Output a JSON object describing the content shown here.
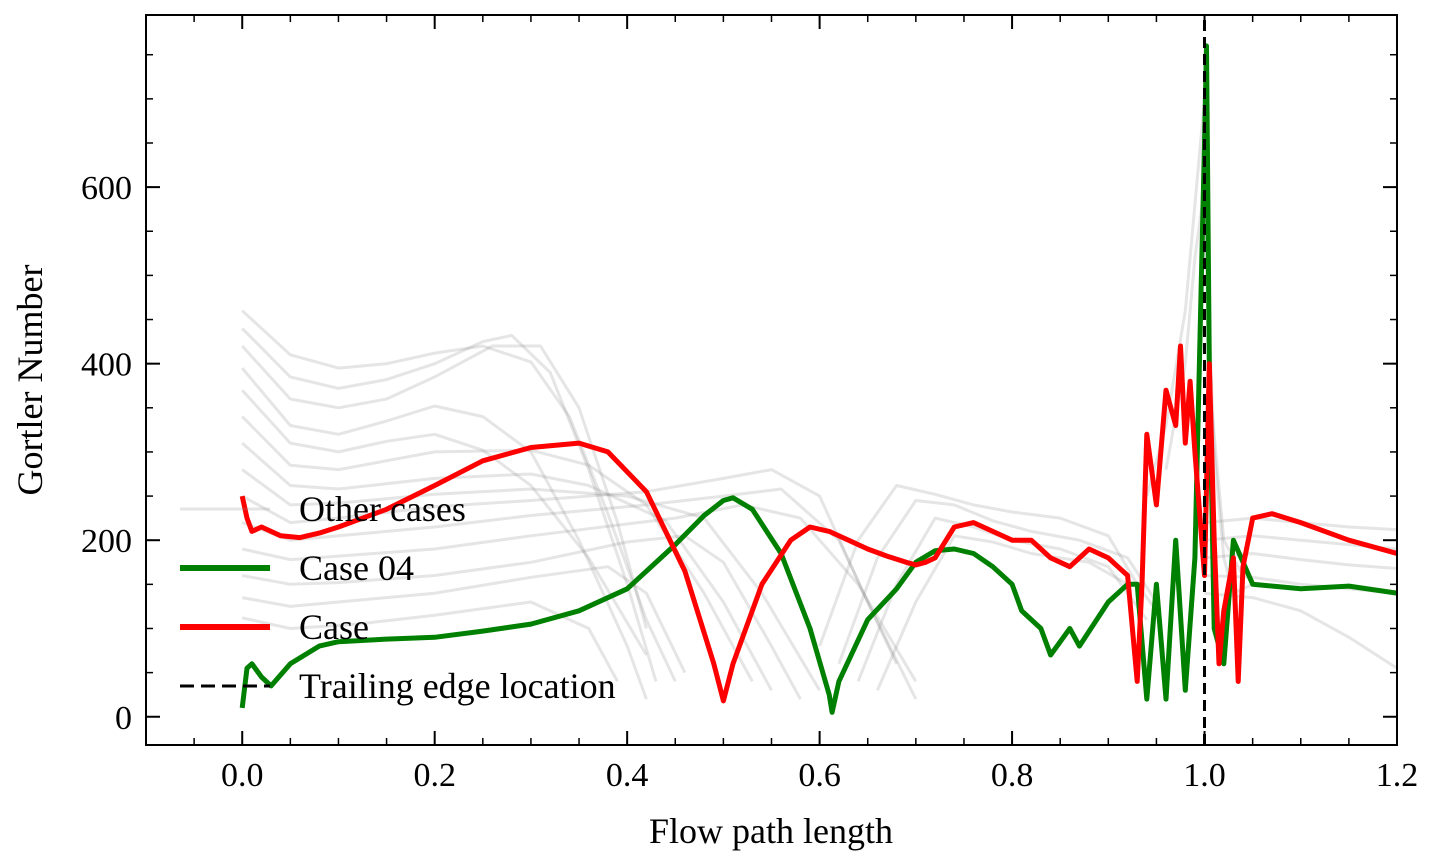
{
  "chart_data": {
    "type": "line",
    "title": "",
    "xlabel": "Flow path length",
    "ylabel": "Gortler Number",
    "xlim": [
      -0.1,
      1.2
    ],
    "ylim": [
      -32,
      795
    ],
    "xticks": [
      0.0,
      0.2,
      0.4,
      0.6,
      0.8,
      1.0,
      1.2
    ],
    "xtick_labels": [
      "0.0",
      "0.2",
      "0.4",
      "0.6",
      "0.8",
      "1.0",
      "1.2"
    ],
    "yticks": [
      0,
      200,
      400,
      600
    ],
    "ytick_labels": [
      "0",
      "200",
      "400",
      "600"
    ],
    "grid": false,
    "legend_position": "lower-left",
    "series": [
      {
        "name": "Other cases",
        "color": "#888888",
        "style": "solid-light",
        "curves": [
          [
            [
              0,
              460
            ],
            [
              0.05,
              410
            ],
            [
              0.1,
              395
            ],
            [
              0.15,
              400
            ],
            [
              0.2,
              412
            ],
            [
              0.25,
              420
            ],
            [
              0.3,
              402
            ],
            [
              0.34,
              340
            ],
            [
              0.38,
              230
            ],
            [
              0.42,
              110
            ],
            [
              0.45,
              40
            ]
          ],
          [
            [
              0,
              440
            ],
            [
              0.05,
              385
            ],
            [
              0.1,
              372
            ],
            [
              0.15,
              382
            ],
            [
              0.2,
              400
            ],
            [
              0.25,
              425
            ],
            [
              0.28,
              432
            ],
            [
              0.32,
              390
            ],
            [
              0.36,
              280
            ],
            [
              0.4,
              150
            ],
            [
              0.43,
              40
            ]
          ],
          [
            [
              0,
              420
            ],
            [
              0.05,
              360
            ],
            [
              0.1,
              350
            ],
            [
              0.15,
              360
            ],
            [
              0.2,
              385
            ],
            [
              0.26,
              420
            ],
            [
              0.31,
              420
            ],
            [
              0.35,
              350
            ],
            [
              0.39,
              220
            ],
            [
              0.42,
              100
            ]
          ],
          [
            [
              0,
              395
            ],
            [
              0.05,
              330
            ],
            [
              0.1,
              320
            ],
            [
              0.15,
              335
            ],
            [
              0.2,
              352
            ],
            [
              0.25,
              340
            ],
            [
              0.3,
              300
            ],
            [
              0.35,
              200
            ],
            [
              0.4,
              80
            ],
            [
              0.42,
              20
            ]
          ],
          [
            [
              0,
              370
            ],
            [
              0.05,
              310
            ],
            [
              0.1,
              300
            ],
            [
              0.15,
              312
            ],
            [
              0.2,
              320
            ],
            [
              0.25,
              302
            ],
            [
              0.3,
              262
            ],
            [
              0.36,
              180
            ],
            [
              0.42,
              70
            ]
          ],
          [
            [
              0,
              340
            ],
            [
              0.05,
              285
            ],
            [
              0.1,
              280
            ],
            [
              0.2,
              300
            ],
            [
              0.3,
              302
            ],
            [
              0.36,
              285
            ],
            [
              0.42,
              240
            ],
            [
              0.48,
              140
            ],
            [
              0.53,
              40
            ]
          ],
          [
            [
              0,
              310
            ],
            [
              0.05,
              262
            ],
            [
              0.1,
              258
            ],
            [
              0.2,
              270
            ],
            [
              0.3,
              275
            ],
            [
              0.36,
              262
            ],
            [
              0.44,
              222
            ],
            [
              0.5,
              130
            ],
            [
              0.55,
              30
            ]
          ],
          [
            [
              0,
              280
            ],
            [
              0.05,
              240
            ],
            [
              0.1,
              242
            ],
            [
              0.2,
              252
            ],
            [
              0.3,
              258
            ],
            [
              0.4,
              250
            ],
            [
              0.48,
              225
            ],
            [
              0.54,
              140
            ],
            [
              0.6,
              30
            ]
          ],
          [
            [
              0,
              250
            ],
            [
              0.05,
              220
            ],
            [
              0.1,
              225
            ],
            [
              0.2,
              238
            ],
            [
              0.3,
              245
            ],
            [
              0.42,
              255
            ],
            [
              0.5,
              270
            ],
            [
              0.55,
              280
            ],
            [
              0.6,
              250
            ],
            [
              0.65,
              130
            ],
            [
              0.7,
              20
            ]
          ],
          [
            [
              0,
              220
            ],
            [
              0.05,
              200
            ],
            [
              0.1,
              205
            ],
            [
              0.2,
              215
            ],
            [
              0.3,
              228
            ],
            [
              0.42,
              240
            ],
            [
              0.5,
              250
            ],
            [
              0.56,
              258
            ],
            [
              0.62,
              200
            ],
            [
              0.68,
              60
            ]
          ],
          [
            [
              0,
              190
            ],
            [
              0.05,
              178
            ],
            [
              0.1,
              182
            ],
            [
              0.2,
              190
            ],
            [
              0.3,
              205
            ],
            [
              0.45,
              225
            ],
            [
              0.52,
              240
            ],
            [
              0.58,
              225
            ],
            [
              0.64,
              150
            ],
            [
              0.7,
              40
            ]
          ],
          [
            [
              0,
              160
            ],
            [
              0.05,
              150
            ],
            [
              0.1,
              152
            ],
            [
              0.2,
              160
            ],
            [
              0.3,
              175
            ],
            [
              0.4,
              198
            ],
            [
              0.46,
              205
            ],
            [
              0.5,
              175
            ],
            [
              0.55,
              80
            ],
            [
              0.58,
              20
            ]
          ],
          [
            [
              0,
              135
            ],
            [
              0.05,
              125
            ],
            [
              0.1,
              130
            ],
            [
              0.2,
              140
            ],
            [
              0.3,
              158
            ],
            [
              0.38,
              170
            ],
            [
              0.42,
              140
            ],
            [
              0.46,
              50
            ]
          ],
          [
            [
              0,
              112
            ],
            [
              0.05,
              100
            ],
            [
              0.12,
              105
            ],
            [
              0.2,
              115
            ],
            [
              0.3,
              130
            ],
            [
              0.36,
              100
            ],
            [
              0.39,
              40
            ]
          ],
          [
            [
              0.6,
              80
            ],
            [
              0.64,
              200
            ],
            [
              0.68,
              262
            ],
            [
              0.72,
              252
            ],
            [
              0.76,
              240
            ],
            [
              0.8,
              232
            ],
            [
              0.85,
              225
            ],
            [
              0.9,
              205
            ],
            [
              0.93,
              150
            ],
            [
              0.95,
              120
            ]
          ],
          [
            [
              0.62,
              60
            ],
            [
              0.66,
              180
            ],
            [
              0.7,
              245
            ],
            [
              0.74,
              240
            ],
            [
              0.78,
              222
            ],
            [
              0.82,
              210
            ],
            [
              0.87,
              200
            ],
            [
              0.92,
              180
            ],
            [
              0.95,
              130
            ]
          ],
          [
            [
              0.64,
              40
            ],
            [
              0.68,
              150
            ],
            [
              0.72,
              225
            ],
            [
              0.76,
              215
            ],
            [
              0.8,
              200
            ],
            [
              0.85,
              190
            ],
            [
              0.9,
              170
            ],
            [
              0.94,
              110
            ]
          ],
          [
            [
              0.66,
              30
            ],
            [
              0.7,
              130
            ],
            [
              0.74,
              205
            ],
            [
              0.78,
              198
            ],
            [
              0.82,
              185
            ],
            [
              0.88,
              175
            ],
            [
              0.92,
              150
            ]
          ],
          [
            [
              0.94,
              250
            ],
            [
              0.96,
              330
            ],
            [
              0.98,
              460
            ],
            [
              0.99,
              580
            ],
            [
              1.0,
              700
            ],
            [
              1.003,
              500
            ],
            [
              1.01,
              300
            ],
            [
              1.02,
              180
            ],
            [
              1.03,
              140
            ],
            [
              1.05,
              150
            ]
          ],
          [
            [
              0.96,
              280
            ],
            [
              0.98,
              400
            ],
            [
              0.99,
              520
            ],
            [
              1.0,
              600
            ],
            [
              1.005,
              380
            ],
            [
              1.02,
              200
            ],
            [
              1.04,
              160
            ]
          ],
          [
            [
              1.0,
              220
            ],
            [
              1.05,
              225
            ],
            [
              1.1,
              220
            ],
            [
              1.15,
              215
            ],
            [
              1.2,
              212
            ]
          ],
          [
            [
              1.0,
              200
            ],
            [
              1.05,
              205
            ],
            [
              1.1,
              200
            ],
            [
              1.15,
              195
            ],
            [
              1.2,
              190
            ]
          ],
          [
            [
              1.0,
              180
            ],
            [
              1.05,
              185
            ],
            [
              1.1,
              178
            ],
            [
              1.15,
              172
            ],
            [
              1.2,
              168
            ]
          ],
          [
            [
              1.0,
              160
            ],
            [
              1.05,
              158
            ],
            [
              1.1,
              150
            ],
            [
              1.15,
              145
            ],
            [
              1.2,
              140
            ]
          ],
          [
            [
              1.0,
              140
            ],
            [
              1.05,
              135
            ],
            [
              1.1,
              120
            ],
            [
              1.15,
              90
            ],
            [
              1.2,
              55
            ]
          ]
        ]
      },
      {
        "name": "Case 04",
        "color": "#008000",
        "style": "solid",
        "x": [
          0,
          0.005,
          0.01,
          0.02,
          0.03,
          0.05,
          0.08,
          0.1,
          0.15,
          0.2,
          0.25,
          0.3,
          0.35,
          0.4,
          0.45,
          0.48,
          0.5,
          0.51,
          0.53,
          0.56,
          0.59,
          0.61,
          0.613,
          0.62,
          0.65,
          0.68,
          0.7,
          0.72,
          0.74,
          0.76,
          0.78,
          0.8,
          0.81,
          0.83,
          0.84,
          0.86,
          0.87,
          0.9,
          0.92,
          0.93,
          0.94,
          0.95,
          0.96,
          0.97,
          0.98,
          0.99,
          1.0,
          1.002,
          1.005,
          1.01,
          1.02,
          1.03,
          1.05,
          1.1,
          1.15,
          1.2
        ],
        "y": [
          10,
          55,
          60,
          45,
          35,
          60,
          80,
          85,
          88,
          90,
          97,
          105,
          120,
          145,
          195,
          228,
          245,
          248,
          235,
          185,
          100,
          25,
          5,
          40,
          110,
          145,
          175,
          188,
          190,
          185,
          170,
          150,
          120,
          100,
          70,
          100,
          80,
          130,
          150,
          150,
          20,
          150,
          20,
          200,
          30,
          180,
          650,
          760,
          400,
          100,
          60,
          200,
          150,
          145,
          148,
          140
        ]
      },
      {
        "name": "Case",
        "color": "#ff0000",
        "style": "solid",
        "x": [
          0,
          0.005,
          0.01,
          0.02,
          0.04,
          0.06,
          0.08,
          0.1,
          0.15,
          0.2,
          0.25,
          0.3,
          0.35,
          0.38,
          0.42,
          0.46,
          0.49,
          0.5,
          0.51,
          0.54,
          0.57,
          0.59,
          0.61,
          0.63,
          0.65,
          0.67,
          0.69,
          0.7,
          0.71,
          0.72,
          0.74,
          0.76,
          0.78,
          0.8,
          0.82,
          0.84,
          0.86,
          0.88,
          0.9,
          0.91,
          0.92,
          0.93,
          0.935,
          0.94,
          0.95,
          0.96,
          0.97,
          0.975,
          0.98,
          0.985,
          0.99,
          1.0,
          1.005,
          1.01,
          1.015,
          1.02,
          1.03,
          1.035,
          1.04,
          1.05,
          1.07,
          1.1,
          1.15,
          1.2
        ],
        "y": [
          250,
          225,
          210,
          215,
          205,
          203,
          208,
          215,
          235,
          262,
          290,
          305,
          310,
          300,
          255,
          165,
          60,
          18,
          60,
          150,
          200,
          215,
          210,
          200,
          190,
          182,
          175,
          172,
          175,
          180,
          215,
          220,
          210,
          200,
          200,
          180,
          170,
          190,
          180,
          170,
          160,
          40,
          150,
          320,
          240,
          370,
          330,
          420,
          310,
          380,
          300,
          160,
          400,
          200,
          60,
          120,
          180,
          40,
          170,
          225,
          230,
          220,
          200,
          185
        ]
      },
      {
        "name": "Trailing edge location",
        "color": "#000000",
        "style": "dashed",
        "x": [
          1.0,
          1.0
        ],
        "y": [
          -32,
          795
        ]
      }
    ]
  }
}
